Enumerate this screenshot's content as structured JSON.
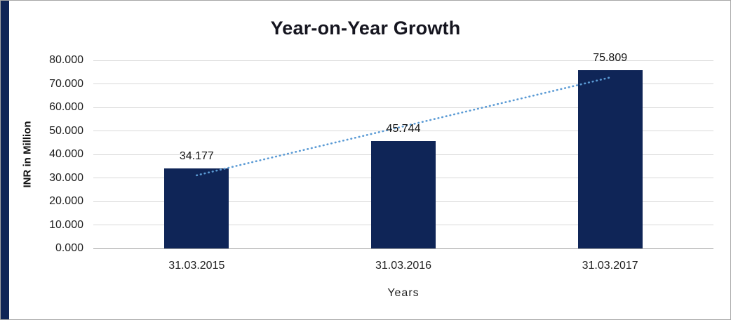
{
  "chart_data": {
    "type": "bar",
    "title": "Year-on-Year Growth",
    "xlabel": "Years",
    "ylabel": "INR in Million",
    "categories": [
      "31.03.2015",
      "31.03.2016",
      "31.03.2017"
    ],
    "values": [
      34.177,
      45.744,
      75.809
    ],
    "value_labels": [
      "34.177",
      "45.744",
      "75.809"
    ],
    "y_ticks": [
      "0.000",
      "10.000",
      "20.000",
      "30.000",
      "40.000",
      "50.000",
      "60.000",
      "70.000",
      "80.000"
    ],
    "ylim": [
      0,
      80
    ],
    "grid": true,
    "legend": "none",
    "trendline": true,
    "colors": {
      "bar": "#0f2557",
      "trendline": "#5b9bd5",
      "gridline": "#d9d9d9",
      "axis_line": "#a6a6a6",
      "accent_strip": "#0f2557"
    }
  }
}
